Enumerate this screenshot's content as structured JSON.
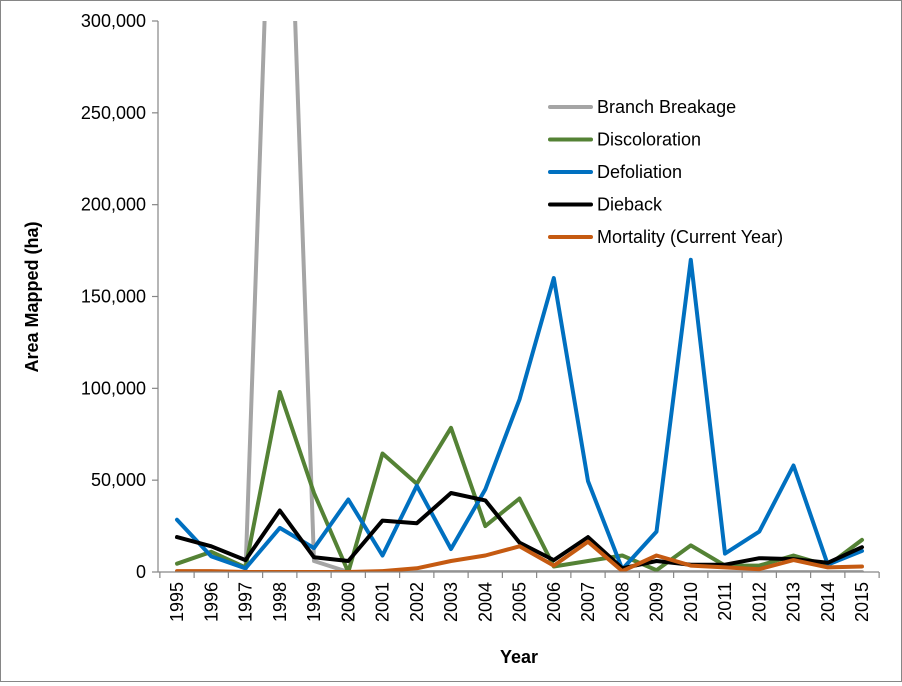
{
  "chart_data": {
    "type": "line",
    "title": "",
    "xlabel": "Year",
    "ylabel": "Area Mapped (ha)",
    "ylim": [
      0,
      300000
    ],
    "yticks": [
      0,
      50000,
      100000,
      150000,
      200000,
      250000,
      300000
    ],
    "ytick_labels": [
      "0",
      "50,000",
      "100,000",
      "150,000",
      "200,000",
      "250,000",
      "300,000"
    ],
    "categories": [
      "1995",
      "1996",
      "1997",
      "1998",
      "1999",
      "2000",
      "2001",
      "2002",
      "2003",
      "2004",
      "2005",
      "2006",
      "2007",
      "2008",
      "2009",
      "2010",
      "2011",
      "2012",
      "2013",
      "2014",
      "2015"
    ],
    "grid": false,
    "legend_position": "top-right",
    "series": [
      {
        "name": "Branch Breakage",
        "color": "#A5A5A5",
        "values": [
          0,
          0,
          0,
          540000,
          6000,
          0,
          0,
          0,
          0,
          0,
          0,
          0,
          0,
          0,
          0,
          0,
          0,
          0,
          0,
          0,
          0
        ]
      },
      {
        "name": "Discoloration",
        "color": "#548235",
        "values": [
          4500,
          11000,
          2500,
          98000,
          43000,
          0,
          64500,
          48000,
          78500,
          25000,
          40000,
          3000,
          6000,
          9000,
          1000,
          14500,
          3500,
          3500,
          9000,
          3500,
          17500
        ]
      },
      {
        "name": "Defoliation",
        "color": "#0070C0",
        "values": [
          28500,
          8500,
          2000,
          24000,
          13000,
          39500,
          9000,
          47000,
          12500,
          45000,
          94000,
          160000,
          49500,
          1500,
          22000,
          170000,
          10000,
          22000,
          58000,
          4000,
          11500
        ]
      },
      {
        "name": "Dieback",
        "color": "#000000",
        "values": [
          19000,
          14000,
          6500,
          33500,
          8000,
          6000,
          28000,
          26500,
          43000,
          39000,
          16000,
          6500,
          19000,
          2000,
          6000,
          4000,
          4000,
          7500,
          7000,
          5000,
          13500
        ]
      },
      {
        "name": "Mortality (Current Year)",
        "color": "#C55A11",
        "values": [
          500,
          500,
          0,
          0,
          0,
          0,
          500,
          2000,
          6000,
          9000,
          14000,
          3500,
          16500,
          500,
          9000,
          3500,
          2500,
          1500,
          6500,
          2500,
          3000
        ]
      }
    ]
  }
}
